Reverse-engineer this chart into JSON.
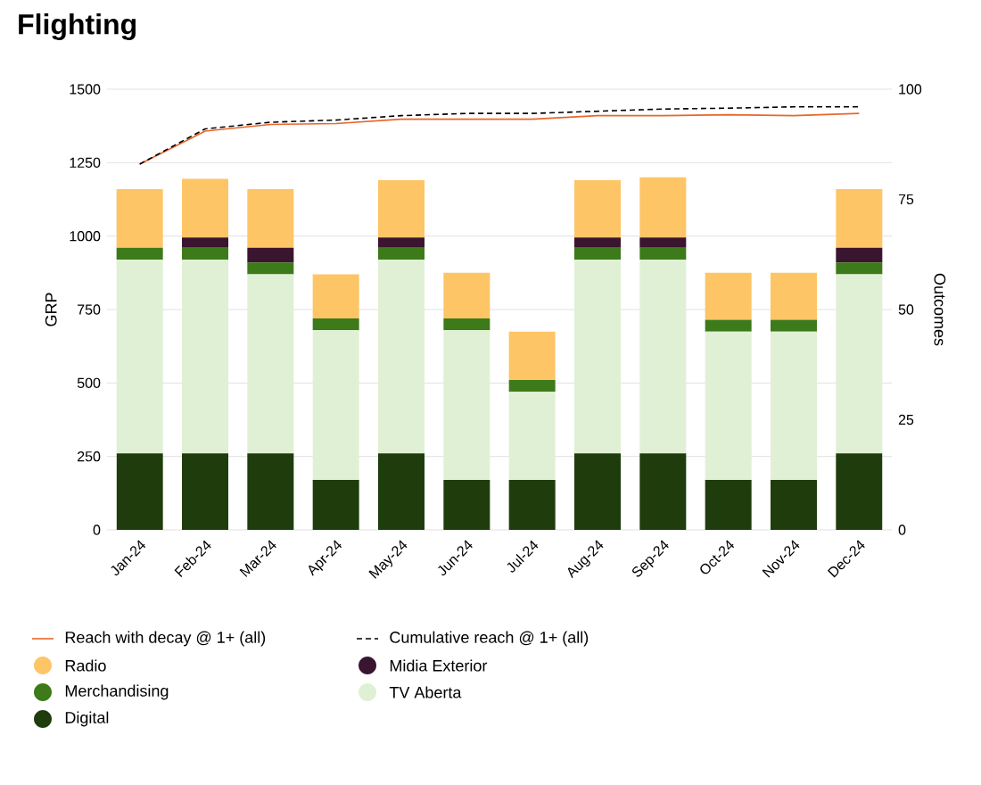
{
  "chart_data": {
    "type": "bar",
    "title": "Flighting",
    "ylabel": "GRP",
    "y2label": "Outcomes",
    "stacked": true,
    "categories": [
      "Jan-24",
      "Feb-24",
      "Mar-24",
      "Apr-24",
      "May-24",
      "Jun-24",
      "Jul-24",
      "Aug-24",
      "Sep-24",
      "Oct-24",
      "Nov-24",
      "Dec-24"
    ],
    "series": [
      {
        "name": "Digital",
        "color": "#1f3d0c",
        "values": [
          260,
          260,
          260,
          170,
          260,
          170,
          170,
          260,
          260,
          170,
          170,
          260
        ]
      },
      {
        "name": "TV Aberta",
        "color": "#e0f0d4",
        "values": [
          660,
          660,
          610,
          510,
          660,
          510,
          300,
          660,
          660,
          505,
          505,
          610
        ]
      },
      {
        "name": "Merchandising",
        "color": "#3d7a1a",
        "values": [
          40,
          40,
          40,
          40,
          40,
          40,
          40,
          40,
          40,
          40,
          40,
          40
        ]
      },
      {
        "name": "Midia Exterior",
        "color": "#3a1530",
        "values": [
          0,
          35,
          50,
          0,
          35,
          0,
          0,
          35,
          35,
          0,
          0,
          50
        ]
      },
      {
        "name": "Radio",
        "color": "#fdc566",
        "values": [
          200,
          200,
          200,
          150,
          195,
          155,
          165,
          195,
          205,
          160,
          160,
          200
        ]
      },
      {
        "name": "Cumulative reach @ 1+ (all)",
        "type": "line",
        "axis": "y2",
        "color": "#000000",
        "line_style": "dashed",
        "values": [
          83,
          91,
          92.5,
          93,
          94,
          94.5,
          94.5,
          95,
          95.5,
          95.7,
          96,
          96
        ]
      },
      {
        "name": "Reach with decay @ 1+ (all)",
        "type": "line",
        "axis": "y2",
        "color": "#e8662a",
        "line_style": "solid",
        "values": [
          83,
          90.5,
          92,
          92.2,
          93.2,
          93.2,
          93.2,
          94,
          94,
          94.2,
          94,
          94.5
        ]
      }
    ],
    "ylim": [
      0,
      1500
    ],
    "yticks": [
      0,
      250,
      500,
      750,
      1000,
      1250,
      1500
    ],
    "y2lim": [
      0,
      100
    ],
    "y2ticks": [
      0,
      25,
      50,
      75,
      100
    ],
    "grid": "y",
    "legend": "bottom",
    "marker": "none"
  }
}
